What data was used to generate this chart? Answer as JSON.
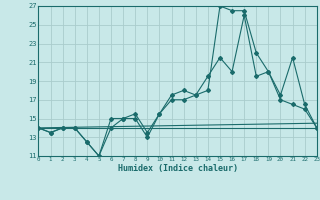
{
  "xlabel": "Humidex (Indice chaleur)",
  "bg_color": "#c8e8e8",
  "grid_color": "#aacccc",
  "line_color": "#1a6b6b",
  "xlim": [
    0,
    23
  ],
  "ylim": [
    11,
    27
  ],
  "yticks": [
    11,
    13,
    15,
    17,
    19,
    21,
    23,
    25,
    27
  ],
  "xticks": [
    0,
    1,
    2,
    3,
    4,
    5,
    6,
    7,
    8,
    9,
    10,
    11,
    12,
    13,
    14,
    15,
    16,
    17,
    18,
    19,
    20,
    21,
    22,
    23
  ],
  "series1_x": [
    0,
    1,
    2,
    3,
    4,
    5,
    6,
    7,
    8,
    9,
    10,
    11,
    12,
    13,
    14,
    15,
    16,
    17,
    18,
    19,
    20,
    21,
    22,
    23
  ],
  "series1_y": [
    14,
    13.5,
    14,
    14,
    12.5,
    11,
    15,
    15,
    15,
    13,
    15.5,
    17,
    17,
    17.5,
    18,
    27,
    26.5,
    26.5,
    22,
    20,
    17,
    16.5,
    16,
    14
  ],
  "series2_x": [
    0,
    1,
    2,
    3,
    4,
    5,
    6,
    7,
    8,
    9,
    10,
    11,
    12,
    13,
    14,
    15,
    16,
    17,
    18,
    19,
    20,
    21,
    22,
    23
  ],
  "series2_y": [
    14,
    13.5,
    14,
    14,
    12.5,
    11,
    14,
    15,
    15.5,
    13.5,
    15.5,
    17.5,
    18,
    17.5,
    19.5,
    21.5,
    20,
    26,
    19.5,
    20,
    17.5,
    21.5,
    16.5,
    14
  ],
  "line1_x": [
    0,
    23
  ],
  "line1_y": [
    14,
    14.5
  ],
  "line2_x": [
    0,
    23
  ],
  "line2_y": [
    14,
    14
  ]
}
